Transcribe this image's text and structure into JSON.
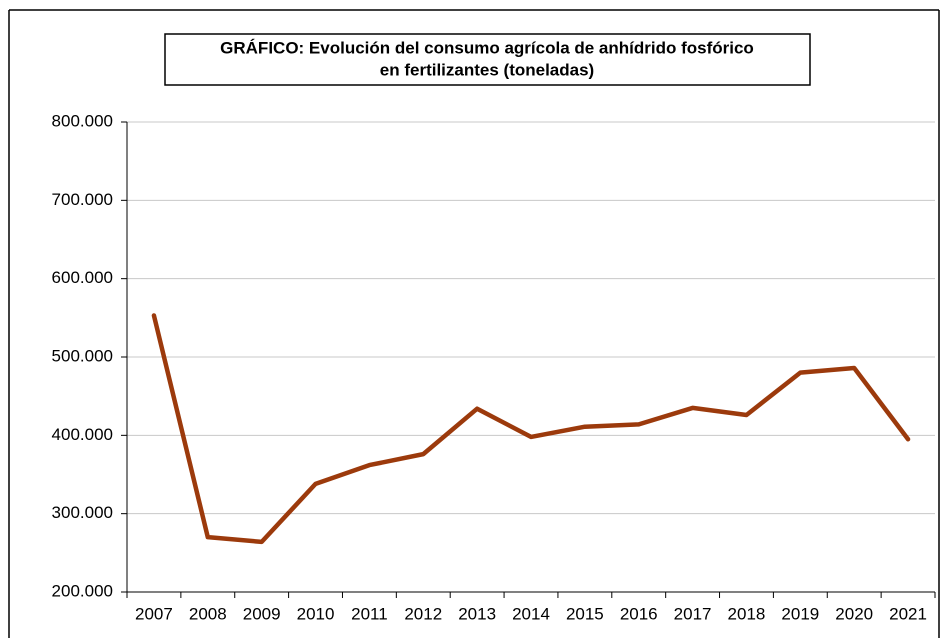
{
  "chart_data": {
    "type": "line",
    "title": [
      "GRÁFICO: Evolución del consumo agrícola de anhídrido fosfórico",
      "en fertilizantes (toneladas)"
    ],
    "categories": [
      "2007",
      "2008",
      "2009",
      "2010",
      "2011",
      "2012",
      "2013",
      "2014",
      "2015",
      "2016",
      "2017",
      "2018",
      "2019",
      "2020",
      "2021"
    ],
    "series": [
      {
        "color": "#9c3a0c",
        "values": [
          553000,
          270000,
          264000,
          338000,
          362000,
          376000,
          434000,
          398000,
          411000,
          414000,
          435000,
          426000,
          480000,
          486000,
          395000
        ]
      }
    ],
    "ylim": [
      200000,
      800000
    ],
    "yticks": [
      {
        "value": 200000,
        "label": "200.000"
      },
      {
        "value": 300000,
        "label": "300.000"
      },
      {
        "value": 400000,
        "label": "400.000"
      },
      {
        "value": 500000,
        "label": "500.000"
      },
      {
        "value": 600000,
        "label": "600.000"
      },
      {
        "value": 700000,
        "label": "700.000"
      },
      {
        "value": 800000,
        "label": "800.000"
      }
    ],
    "grid": true
  }
}
